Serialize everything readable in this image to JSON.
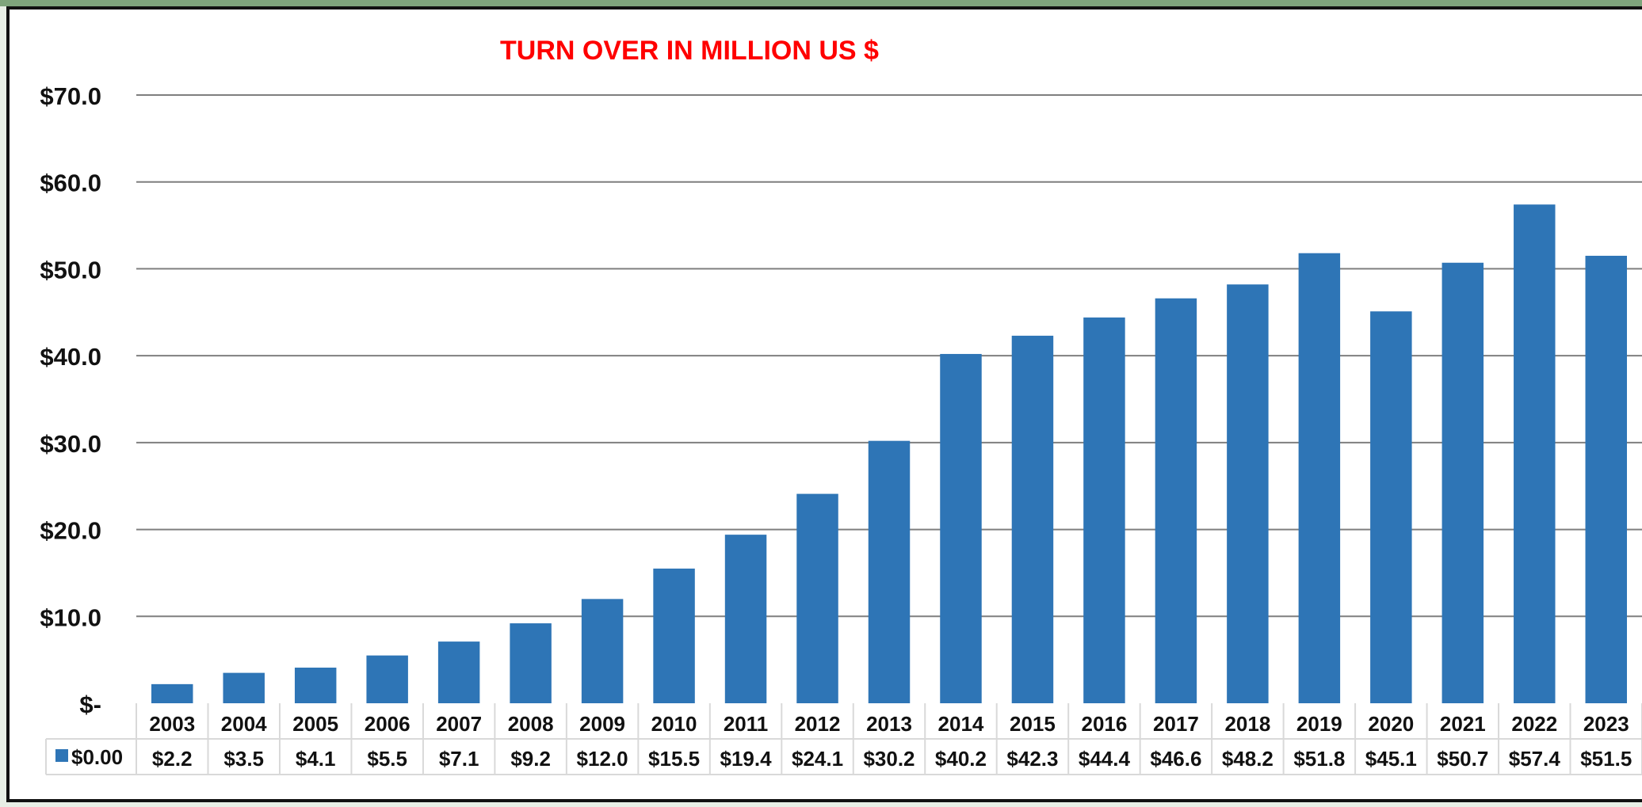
{
  "chart_data": {
    "type": "bar",
    "title": "TURN OVER IN MILLION US $",
    "categories": [
      "2003",
      "2004",
      "2005",
      "2006",
      "2007",
      "2008",
      "2009",
      "2010",
      "2011",
      "2012",
      "2013",
      "2014",
      "2015",
      "2016",
      "2017",
      "2018",
      "2019",
      "2020",
      "2021",
      "2022",
      "2023"
    ],
    "series": [
      {
        "name": "$0.00",
        "values": [
          2.2,
          3.5,
          4.1,
          5.5,
          7.1,
          9.2,
          12.0,
          15.5,
          19.4,
          24.1,
          30.2,
          40.2,
          42.3,
          44.4,
          46.6,
          48.2,
          51.8,
          45.1,
          50.7,
          57.4,
          51.5
        ],
        "value_labels": [
          "$2.2",
          "$3.5",
          "$4.1",
          "$5.5",
          "$7.1",
          "$9.2",
          "$12.0",
          "$15.5",
          "$19.4",
          "$24.1",
          "$30.2",
          "$40.2",
          "$42.3",
          "$44.4",
          "$46.6",
          "$48.2",
          "$51.8",
          "$45.1",
          "$50.7",
          "$57.4",
          "$51.5"
        ]
      }
    ],
    "yticks": [
      "$-",
      "$10.0",
      "$20.0",
      "$30.0",
      "$40.0",
      "$50.0",
      "$60.0",
      "$70.0"
    ],
    "ylim": [
      0,
      70
    ],
    "grid": true,
    "data_table": true,
    "colors": {
      "bar": "#2e75b6",
      "title": "#ff0000",
      "grid": "#7f7f7f",
      "table_border": "#d9d9d9"
    }
  }
}
